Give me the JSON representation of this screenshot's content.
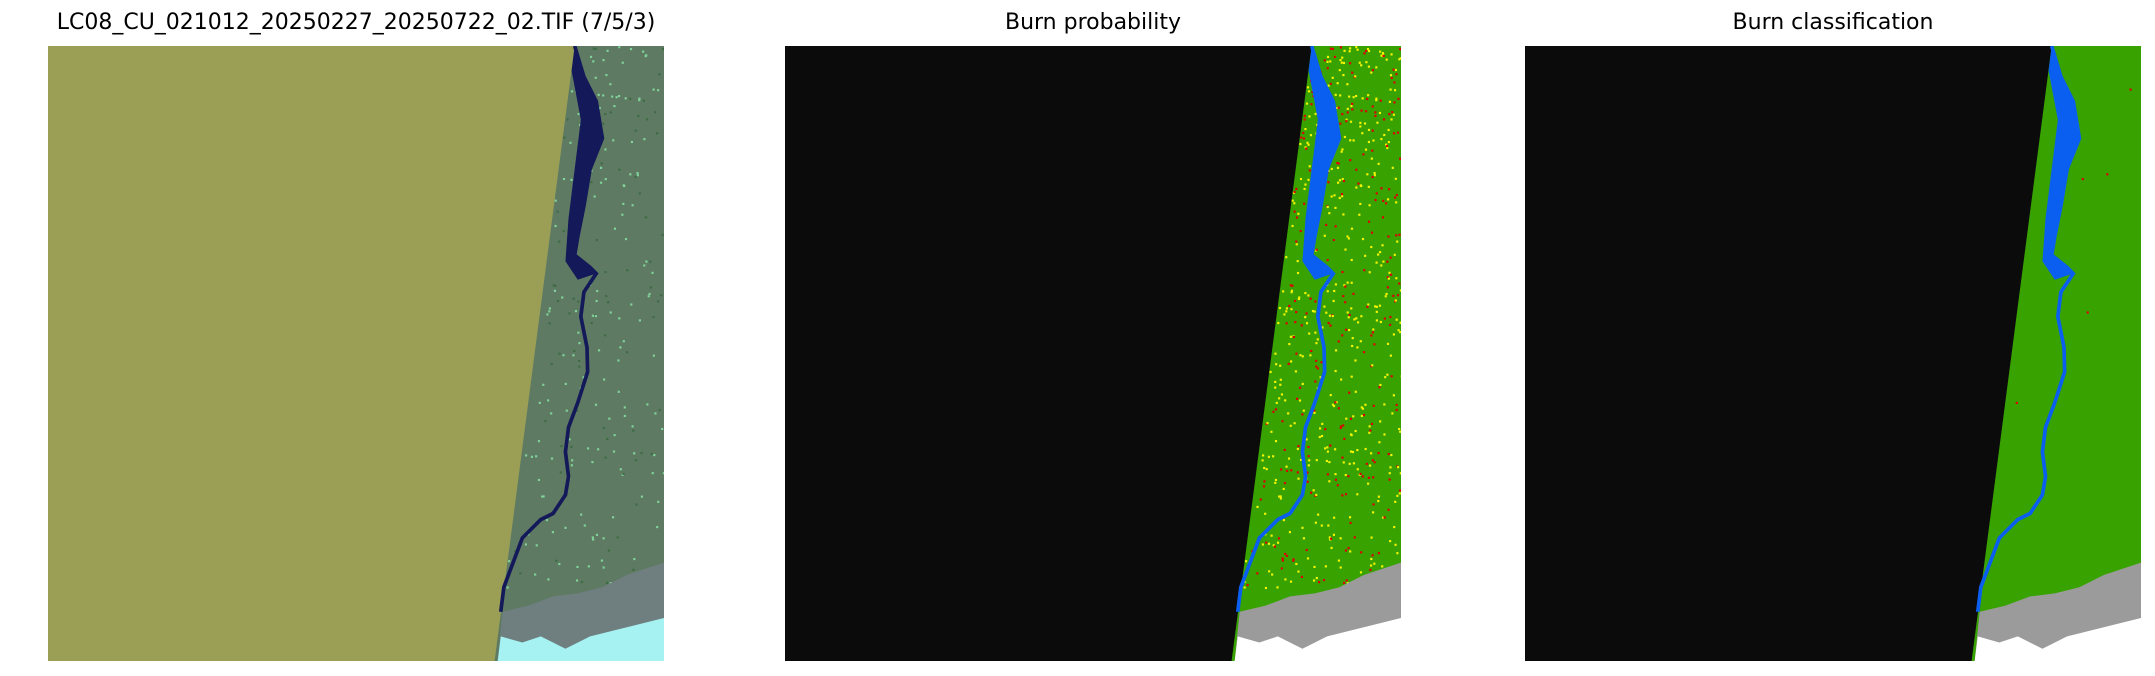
{
  "panels": [
    {
      "title": "LC08_CU_021012_20250227_20250722_02.TIF (7/5/3)"
    },
    {
      "title": "Burn probability"
    },
    {
      "title": "Burn classification"
    }
  ],
  "colors": {
    "nodata_composite": "#9a9f55",
    "nodata_mask": "#0b0b0b",
    "unburned": "#38a200",
    "water": "#0a5ff0",
    "cloud": "#9b9b9b",
    "burn_low": "#f5f500",
    "burn_high": "#e00000",
    "composite_land": "#5f7a62",
    "composite_water": "#14195a",
    "composite_snow": "#a6f2f2"
  }
}
